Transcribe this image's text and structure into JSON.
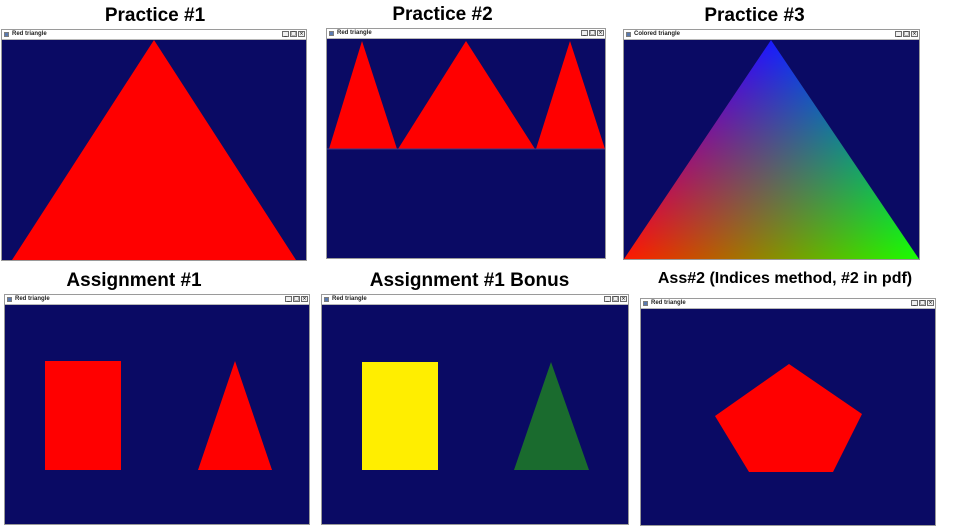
{
  "panels": [
    {
      "caption": "Practice #1",
      "window_title": "Red triangle"
    },
    {
      "caption": "Practice #2",
      "window_title": "Red triangle"
    },
    {
      "caption": "Practice #3",
      "window_title": "Colored triangle"
    },
    {
      "caption": "Assignment #1",
      "window_title": "Red triangle"
    },
    {
      "caption": "Assignment #1 Bonus",
      "window_title": "Red triangle"
    },
    {
      "caption": "Ass#2 (Indices method, #2 in pdf)",
      "window_title": "Red triangle"
    }
  ],
  "window_controls": {
    "minimize": "_",
    "maximize": "□",
    "close": "×"
  },
  "colors": {
    "background": "#0a0a64",
    "red": "#ff0000",
    "yellow": "#ffee00",
    "green": "#1a6b2e",
    "vertex_blue": "#0000ff",
    "vertex_red": "#ff0000",
    "vertex_green": "#00ff00"
  }
}
